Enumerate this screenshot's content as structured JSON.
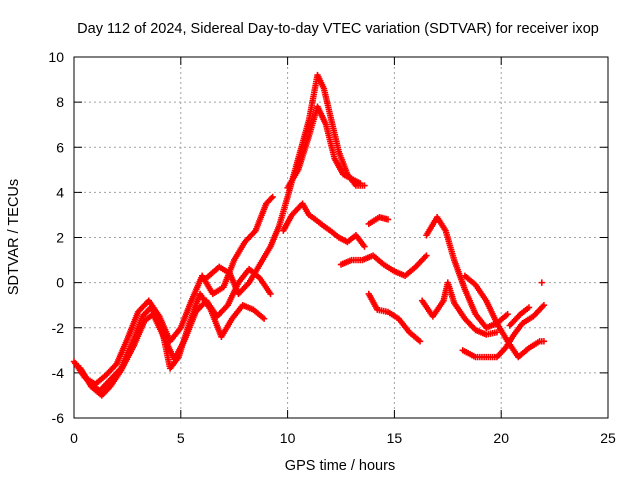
{
  "chart_data": {
    "type": "scatter",
    "title": "Day 112 of 2024, Sidereal Day-to-day VTEC variation (SDTVAR) for receiver ixop",
    "xlabel": "GPS time / hours",
    "ylabel": "SDTVAR / TECUs",
    "xlim": [
      0,
      25
    ],
    "ylim": [
      -6,
      10
    ],
    "xticks": [
      "0",
      "5",
      "10",
      "15",
      "20",
      "25"
    ],
    "yticks": [
      "-6",
      "-4",
      "-2",
      "0",
      "2",
      "4",
      "6",
      "8",
      "10"
    ],
    "grid": true,
    "marker": "+",
    "series_color": "#ff0000",
    "series": [
      {
        "name": "track-1",
        "points": [
          [
            0,
            -3.5
          ],
          [
            0.5,
            -4.2
          ],
          [
            1,
            -4.5
          ],
          [
            1.5,
            -4.1
          ],
          [
            2,
            -3.6
          ],
          [
            2.5,
            -2.5
          ],
          [
            3,
            -1.3
          ],
          [
            3.5,
            -0.8
          ],
          [
            4,
            -1.5
          ],
          [
            4.5,
            -2.6
          ],
          [
            5,
            -2.0
          ],
          [
            5.5,
            -0.8
          ],
          [
            6,
            0.3
          ],
          [
            6.5,
            -0.5
          ],
          [
            7,
            -0.2
          ],
          [
            7.5,
            1.0
          ],
          [
            8,
            1.8
          ],
          [
            8.5,
            2.3
          ],
          [
            9,
            3.5
          ],
          [
            9.3,
            3.8
          ]
        ]
      },
      {
        "name": "track-2",
        "points": [
          [
            0.3,
            -3.8
          ],
          [
            0.8,
            -4.6
          ],
          [
            1.3,
            -5.0
          ],
          [
            1.7,
            -4.6
          ],
          [
            2.2,
            -3.9
          ],
          [
            2.8,
            -2.8
          ],
          [
            3.3,
            -1.7
          ],
          [
            3.7,
            -1.4
          ],
          [
            4.2,
            -2.4
          ],
          [
            4.7,
            -3.4
          ],
          [
            5.2,
            -2.5
          ],
          [
            5.7,
            -1.3
          ],
          [
            6.2,
            -0.8
          ],
          [
            6.7,
            -1.5
          ],
          [
            7.2,
            -1.0
          ],
          [
            7.7,
            0.0
          ],
          [
            8.2,
            0.6
          ],
          [
            8.7,
            0.2
          ],
          [
            9.2,
            -0.5
          ]
        ]
      },
      {
        "name": "track-3",
        "points": [
          [
            0.2,
            -3.7
          ],
          [
            0.7,
            -4.4
          ],
          [
            1.2,
            -4.8
          ],
          [
            1.6,
            -4.4
          ],
          [
            2.2,
            -3.8
          ],
          [
            2.8,
            -2.5
          ],
          [
            3.2,
            -1.5
          ],
          [
            3.6,
            -1.1
          ],
          [
            4.1,
            -2.0
          ],
          [
            4.5,
            -3.8
          ],
          [
            4.9,
            -3.3
          ],
          [
            5.4,
            -1.8
          ],
          [
            5.9,
            -0.5
          ],
          [
            6.4,
            -1.2
          ],
          [
            6.9,
            -2.4
          ],
          [
            7.4,
            -1.6
          ],
          [
            7.9,
            -1.0
          ],
          [
            8.4,
            -1.2
          ],
          [
            8.9,
            -1.6
          ]
        ]
      },
      {
        "name": "track-4",
        "points": [
          [
            6.2,
            0.2
          ],
          [
            6.8,
            0.7
          ],
          [
            7.3,
            0.4
          ],
          [
            7.7,
            -0.5
          ],
          [
            8.2,
            0.0
          ],
          [
            8.7,
            0.8
          ],
          [
            9.2,
            1.6
          ],
          [
            9.6,
            2.5
          ],
          [
            10,
            3.8
          ],
          [
            10.5,
            5.5
          ],
          [
            11,
            7.2
          ],
          [
            11.4,
            9.2
          ],
          [
            11.7,
            8.6
          ],
          [
            12,
            7.4
          ],
          [
            12.4,
            5.8
          ],
          [
            12.8,
            4.8
          ],
          [
            13.2,
            4.3
          ],
          [
            13.6,
            4.3
          ]
        ]
      },
      {
        "name": "track-5",
        "points": [
          [
            9.8,
            2.3
          ],
          [
            10.2,
            3.0
          ],
          [
            10.7,
            3.5
          ],
          [
            11,
            3.0
          ],
          [
            11.3,
            2.8
          ],
          [
            11.7,
            2.5
          ],
          [
            12,
            2.3
          ],
          [
            12.4,
            2.0
          ],
          [
            12.8,
            1.8
          ],
          [
            13.2,
            2.1
          ],
          [
            13.6,
            1.6
          ]
        ]
      },
      {
        "name": "track-6",
        "points": [
          [
            10,
            4.2
          ],
          [
            10.5,
            5.0
          ],
          [
            11,
            6.5
          ],
          [
            11.4,
            7.8
          ],
          [
            11.8,
            7.0
          ],
          [
            12.2,
            5.5
          ],
          [
            12.6,
            4.8
          ],
          [
            13,
            4.6
          ],
          [
            13.4,
            4.4
          ]
        ]
      },
      {
        "name": "track-7",
        "points": [
          [
            12.5,
            0.8
          ],
          [
            13,
            1.0
          ],
          [
            13.5,
            1.0
          ],
          [
            14,
            1.2
          ],
          [
            14.5,
            0.8
          ],
          [
            15,
            0.5
          ],
          [
            15.5,
            0.3
          ],
          [
            16,
            0.7
          ],
          [
            16.5,
            1.2
          ]
        ]
      },
      {
        "name": "track-8",
        "points": [
          [
            13.8,
            2.6
          ],
          [
            14.3,
            2.9
          ],
          [
            14.7,
            2.8
          ]
        ]
      },
      {
        "name": "track-9",
        "points": [
          [
            13.8,
            -0.5
          ],
          [
            14.2,
            -1.2
          ],
          [
            14.7,
            -1.3
          ],
          [
            15.2,
            -1.6
          ],
          [
            15.7,
            -2.2
          ],
          [
            16.2,
            -2.6
          ]
        ]
      },
      {
        "name": "track-10",
        "points": [
          [
            16.3,
            -0.8
          ],
          [
            16.8,
            -1.5
          ],
          [
            17.3,
            -0.8
          ],
          [
            17.5,
            0.0
          ],
          [
            17.8,
            -0.9
          ],
          [
            18.3,
            -1.6
          ],
          [
            18.8,
            -2.1
          ],
          [
            19.3,
            -2.3
          ],
          [
            19.8,
            -2.2
          ]
        ]
      },
      {
        "name": "track-11",
        "points": [
          [
            16.5,
            2.1
          ],
          [
            17,
            2.9
          ],
          [
            17.4,
            2.3
          ],
          [
            17.8,
            1.0
          ],
          [
            18.3,
            -0.3
          ],
          [
            18.8,
            -1.4
          ],
          [
            19.3,
            -2.0
          ],
          [
            19.8,
            -1.8
          ],
          [
            20.3,
            -1.4
          ]
        ]
      },
      {
        "name": "track-12",
        "points": [
          [
            18.3,
            0.3
          ],
          [
            18.8,
            -0.1
          ],
          [
            19.3,
            -0.8
          ],
          [
            19.8,
            -1.8
          ],
          [
            20.3,
            -2.6
          ],
          [
            20.8,
            -3.3
          ],
          [
            21.3,
            -2.9
          ],
          [
            21.8,
            -2.6
          ],
          [
            22,
            -2.6
          ]
        ]
      },
      {
        "name": "track-13",
        "points": [
          [
            18.2,
            -3.0
          ],
          [
            18.8,
            -3.3
          ],
          [
            19.3,
            -3.3
          ],
          [
            19.8,
            -3.3
          ],
          [
            20.2,
            -2.9
          ],
          [
            20.6,
            -2.3
          ],
          [
            21,
            -1.8
          ],
          [
            21.5,
            -1.5
          ],
          [
            22,
            -1.0
          ]
        ]
      },
      {
        "name": "track-14",
        "points": [
          [
            20.4,
            -1.9
          ],
          [
            20.9,
            -1.4
          ],
          [
            21.3,
            -1.1
          ]
        ]
      },
      {
        "name": "track-15",
        "points": [
          [
            21.9,
            0.0
          ]
        ]
      }
    ]
  }
}
